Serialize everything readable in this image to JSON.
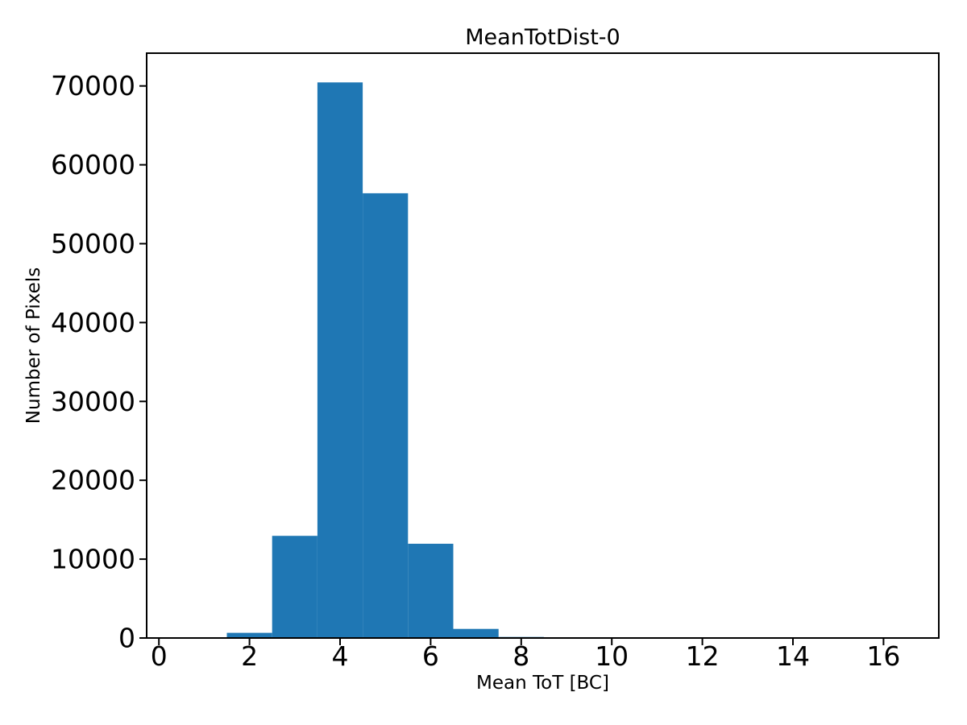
{
  "figure": {
    "background": "#ffffff"
  },
  "chart_data": {
    "type": "bar",
    "subtype": "histogram",
    "title": "MeanTotDist-0",
    "xlabel": "Mean ToT [BC]",
    "ylabel": "Number of Pixels",
    "bar_color": "#1f77b4",
    "axis_color": "#000000",
    "grid": false,
    "legend": "none",
    "bin_centers": [
      1,
      2,
      3,
      4,
      5,
      6,
      7,
      8,
      9,
      10,
      11,
      12,
      13,
      14,
      15,
      16
    ],
    "bin_edges": [
      0.5,
      1.5,
      2.5,
      3.5,
      4.5,
      5.5,
      6.5,
      7.5,
      8.5,
      9.5,
      10.5,
      11.5,
      12.5,
      13.5,
      14.5,
      15.5,
      16.5
    ],
    "counts": [
      0,
      650,
      12950,
      70450,
      56400,
      11950,
      1150,
      130,
      0,
      0,
      0,
      0,
      0,
      0,
      0,
      0
    ],
    "x_ticks": [
      0,
      2,
      4,
      6,
      8,
      10,
      12,
      14,
      16
    ],
    "y_ticks": [
      0,
      10000,
      20000,
      30000,
      40000,
      50000,
      60000,
      70000
    ],
    "xlim": [
      -0.27,
      17.22
    ],
    "ylim": [
      0,
      74160
    ]
  }
}
